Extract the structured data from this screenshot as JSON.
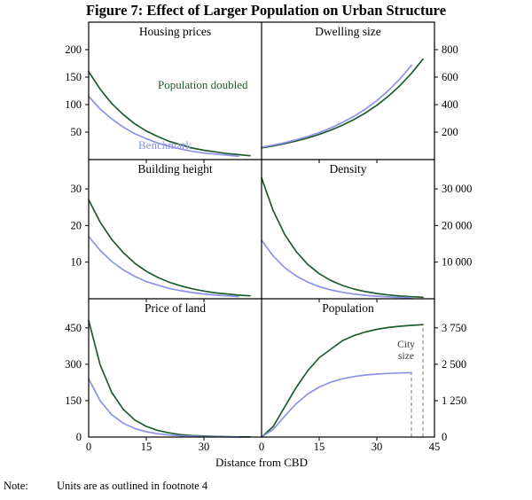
{
  "figure": {
    "title": "Figure 7: Effect of Larger Population on Urban Structure",
    "x_axis_label": "Distance from CBD",
    "note_label": "Note:",
    "note_text": "Units are as outlined in footnote 4"
  },
  "legend": {
    "doubled": "Population doubled",
    "benchmark": "Benchmark"
  },
  "annotations": {
    "city_size_line1": "City",
    "city_size_line2": "size"
  },
  "colors": {
    "doubled": "#1d5c2e",
    "benchmark": "#8c93e8",
    "frame": "#000000",
    "dashed": "#8f8f8f"
  },
  "chart_data": [
    {
      "id": "housing-prices",
      "title": "Housing prices",
      "type": "line",
      "col": "left",
      "row": 0,
      "xlim": [
        0,
        45
      ],
      "ylim": [
        0,
        250
      ],
      "yticks": [
        {
          "v": 50,
          "label": "50"
        },
        {
          "v": 100,
          "label": "100"
        },
        {
          "v": 150,
          "label": "150"
        },
        {
          "v": 200,
          "label": "200"
        }
      ],
      "series": [
        {
          "name": "Population doubled",
          "color": "doubled",
          "x": [
            0,
            3,
            6,
            9,
            12,
            15,
            18,
            21,
            24,
            27,
            30,
            33,
            36,
            39,
            42
          ],
          "y": [
            160,
            128,
            102,
            82,
            65,
            52,
            42,
            33,
            27,
            21,
            17,
            14,
            11,
            9,
            7
          ]
        },
        {
          "name": "Benchmark",
          "color": "benchmark",
          "x": [
            0,
            3,
            6,
            9,
            12,
            15,
            18,
            21,
            24,
            27,
            30,
            33,
            36,
            39
          ],
          "y": [
            115,
            92,
            74,
            59,
            47,
            38,
            30,
            24,
            19,
            15,
            12,
            10,
            8,
            6
          ]
        }
      ]
    },
    {
      "id": "dwelling-size",
      "title": "Dwelling size",
      "type": "line",
      "col": "right",
      "row": 0,
      "xlim": [
        0,
        45
      ],
      "ylim": [
        0,
        1000
      ],
      "yticks": [
        {
          "v": 200,
          "label": "200"
        },
        {
          "v": 400,
          "label": "400"
        },
        {
          "v": 600,
          "label": "600"
        },
        {
          "v": 800,
          "label": "800"
        }
      ],
      "series": [
        {
          "name": "Population doubled",
          "color": "doubled",
          "x": [
            0,
            3,
            6,
            9,
            12,
            15,
            18,
            21,
            24,
            27,
            30,
            33,
            36,
            39,
            42
          ],
          "y": [
            85,
            99,
            116,
            135,
            157,
            183,
            214,
            249,
            291,
            339,
            395,
            461,
            538,
            627,
            731
          ]
        },
        {
          "name": "Benchmark",
          "color": "benchmark",
          "x": [
            0,
            3,
            6,
            9,
            12,
            15,
            18,
            21,
            24,
            27,
            30,
            33,
            36,
            39
          ],
          "y": [
            90,
            105,
            123,
            144,
            168,
            197,
            230,
            269,
            314,
            367,
            429,
            502,
            587,
            686
          ]
        }
      ]
    },
    {
      "id": "building-height",
      "title": "Building height",
      "type": "line",
      "col": "left",
      "row": 1,
      "xlim": [
        0,
        45
      ],
      "ylim": [
        0,
        38
      ],
      "yticks": [
        {
          "v": 10,
          "label": "10"
        },
        {
          "v": 20,
          "label": "20"
        },
        {
          "v": 30,
          "label": "30"
        }
      ],
      "series": [
        {
          "name": "Population doubled",
          "color": "doubled",
          "x": [
            0,
            3,
            6,
            9,
            12,
            15,
            18,
            21,
            24,
            27,
            30,
            33,
            36,
            39,
            42
          ],
          "y": [
            27,
            20.9,
            16.2,
            12.6,
            9.7,
            7.5,
            5.8,
            4.5,
            3.5,
            2.7,
            2.1,
            1.6,
            1.3,
            1.0,
            0.8
          ]
        },
        {
          "name": "Benchmark",
          "color": "benchmark",
          "x": [
            0,
            3,
            6,
            9,
            12,
            15,
            18,
            21,
            24,
            27,
            30,
            33,
            36,
            39
          ],
          "y": [
            17,
            13.2,
            10.2,
            7.9,
            6.1,
            4.7,
            3.7,
            2.8,
            2.2,
            1.7,
            1.3,
            1.0,
            0.8,
            0.6
          ]
        }
      ]
    },
    {
      "id": "density",
      "title": "Density",
      "type": "line",
      "col": "right",
      "row": 1,
      "xlim": [
        0,
        45
      ],
      "ylim": [
        0,
        38000
      ],
      "yticks": [
        {
          "v": 10000,
          "label": "10 000"
        },
        {
          "v": 20000,
          "label": "20 000"
        },
        {
          "v": 30000,
          "label": "30 000"
        }
      ],
      "series": [
        {
          "name": "Population doubled",
          "color": "doubled",
          "x": [
            0,
            3,
            6,
            9,
            12,
            15,
            18,
            21,
            24,
            27,
            30,
            33,
            36,
            39,
            42
          ],
          "y": [
            33000,
            24100,
            17600,
            12900,
            9400,
            6850,
            5000,
            3650,
            2670,
            1950,
            1420,
            1040,
            760,
            550,
            400
          ]
        },
        {
          "name": "Benchmark",
          "color": "benchmark",
          "x": [
            0,
            3,
            6,
            9,
            12,
            15,
            18,
            21,
            24,
            27,
            30,
            33,
            36,
            39
          ],
          "y": [
            16000,
            11700,
            8530,
            6230,
            4550,
            3320,
            2420,
            1770,
            1290,
            940,
            690,
            500,
            370,
            270
          ]
        }
      ]
    },
    {
      "id": "price-of-land",
      "title": "Price of land",
      "type": "line",
      "col": "left",
      "row": 2,
      "xlim": [
        0,
        45
      ],
      "ylim": [
        0,
        570
      ],
      "yticks": [
        {
          "v": 0,
          "label": "0"
        },
        {
          "v": 150,
          "label": "150"
        },
        {
          "v": 300,
          "label": "300"
        },
        {
          "v": 450,
          "label": "450"
        }
      ],
      "xtick_labels": [
        {
          "v": 0,
          "label": "0"
        },
        {
          "v": 15,
          "label": "15"
        },
        {
          "v": 30,
          "label": "30"
        }
      ],
      "series": [
        {
          "name": "Population doubled",
          "color": "doubled",
          "x": [
            0,
            3,
            6,
            9,
            12,
            15,
            18,
            21,
            24,
            27,
            30,
            33,
            36,
            39,
            42
          ],
          "y": [
            480,
            297,
            184,
            114,
            70,
            44,
            27,
            17,
            10,
            6,
            4,
            2.4,
            1.5,
            0.9,
            0.6
          ]
        },
        {
          "name": "Benchmark",
          "color": "benchmark",
          "x": [
            0,
            3,
            6,
            9,
            12,
            15,
            18,
            21,
            24,
            27,
            30,
            33,
            36,
            39
          ],
          "y": [
            240,
            149,
            92,
            57,
            35,
            22,
            13.5,
            8.4,
            5.2,
            3.2,
            2,
            1.2,
            0.8,
            0.5
          ]
        }
      ]
    },
    {
      "id": "population",
      "title": "Population",
      "type": "line",
      "col": "right",
      "row": 2,
      "xlim": [
        0,
        45
      ],
      "ylim": [
        0,
        4750
      ],
      "yticks": [
        {
          "v": 0,
          "label": "0"
        },
        {
          "v": 1250,
          "label": "1 250"
        },
        {
          "v": 2500,
          "label": "2 500"
        },
        {
          "v": 3750,
          "label": "3 750"
        }
      ],
      "xtick_labels": [
        {
          "v": 0,
          "label": "0"
        },
        {
          "v": 15,
          "label": "15"
        },
        {
          "v": 30,
          "label": "30"
        },
        {
          "v": 45,
          "label": "45"
        }
      ],
      "city_edges": [
        {
          "x": 39,
          "top": 2211
        },
        {
          "x": 42,
          "top": 3860
        }
      ],
      "series": [
        {
          "name": "Population doubled",
          "color": "doubled",
          "x": [
            0,
            3,
            6,
            9,
            12,
            15,
            18,
            21,
            24,
            27,
            30,
            33,
            36,
            39,
            42
          ],
          "y": [
            0,
            357,
            1028,
            1701,
            2276,
            2725,
            3015,
            3306,
            3484,
            3609,
            3699,
            3762,
            3807,
            3838,
            3860
          ]
        },
        {
          "name": "Benchmark",
          "color": "benchmark",
          "x": [
            0,
            3,
            6,
            9,
            12,
            15,
            18,
            21,
            24,
            27,
            30,
            33,
            36,
            39
          ],
          "y": [
            0,
            262,
            720,
            1144,
            1476,
            1717,
            1885,
            2000,
            2078,
            2130,
            2163,
            2186,
            2201,
            2211
          ]
        }
      ]
    }
  ]
}
